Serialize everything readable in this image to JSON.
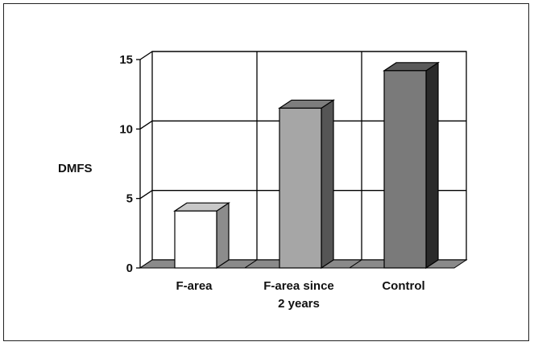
{
  "chart_data": {
    "type": "bar",
    "categories": [
      [
        "F-area"
      ],
      [
        "F-area since",
        "2 years"
      ],
      [
        "Control"
      ]
    ],
    "values": [
      4.1,
      11.5,
      14.2
    ],
    "ylabel": "DMFS",
    "xlabel": "",
    "title": "",
    "ylim": [
      0,
      15
    ],
    "yticks": [
      0,
      5,
      10,
      15
    ],
    "grid": true,
    "colors": {
      "bar_fronts": [
        "#ffffff",
        "#a6a6a6",
        "#7a7a7a"
      ],
      "bar_sides": [
        "#8c8c8c",
        "#555555",
        "#2a2a2a"
      ],
      "bar_tops": [
        "#c8c8c8",
        "#7d7d7d",
        "#5a5a5a"
      ],
      "floor": "#8a8a8a",
      "grid": "#000000"
    }
  }
}
